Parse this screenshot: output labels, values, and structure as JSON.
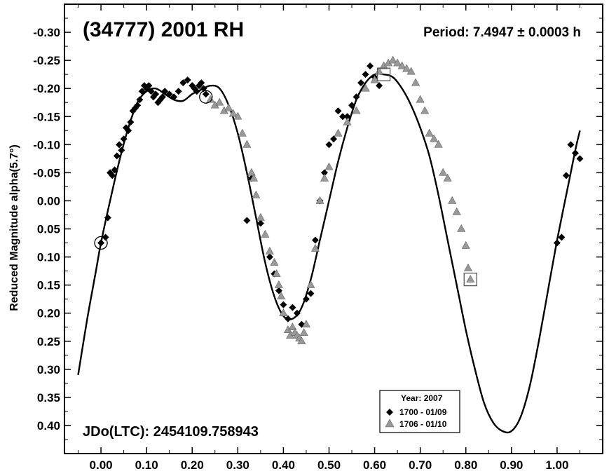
{
  "chart_data": {
    "type": "scatter",
    "title": "(34777) 2001 RH",
    "period_label": "Period: 7.4947 ± 0.0003 h",
    "epoch_label": "JDo(LTC): 2454109.758943",
    "ylabel": "Reduced Magnitude alpha(5.7°)",
    "xlabel": "",
    "xlim": [
      -0.08,
      1.1
    ],
    "ylim": [
      0.45,
      -0.35
    ],
    "y_inverted": true,
    "grid": false,
    "x_ticks": [
      "0.00",
      "0.10",
      "0.20",
      "0.30",
      "0.40",
      "0.50",
      "0.60",
      "0.70",
      "0.80",
      "0.90",
      "1.00"
    ],
    "x_tick_values": [
      0.0,
      0.1,
      0.2,
      0.3,
      0.4,
      0.5,
      0.6,
      0.7,
      0.8,
      0.9,
      1.0
    ],
    "y_ticks": [
      "-0.30",
      "-0.25",
      "-0.20",
      "-0.15",
      "-0.10",
      "-0.05",
      "0.00",
      "0.05",
      "0.10",
      "0.15",
      "0.20",
      "0.25",
      "0.30",
      "0.35",
      "0.40"
    ],
    "y_tick_values": [
      -0.3,
      -0.25,
      -0.2,
      -0.15,
      -0.1,
      -0.05,
      0.0,
      0.05,
      0.1,
      0.15,
      0.2,
      0.25,
      0.3,
      0.35,
      0.4
    ],
    "legend": {
      "title": "Year: 2007",
      "position": "bottom-right",
      "entries": [
        {
          "label": "1700 - 01/09",
          "marker": "diamond",
          "color": "#000000"
        },
        {
          "label": "1706 - 01/10",
          "marker": "triangle",
          "color": "#999999"
        }
      ]
    },
    "fit_curve": {
      "name": "",
      "x": [
        -0.05,
        -0.03,
        -0.01,
        0.0,
        0.02,
        0.04,
        0.06,
        0.08,
        0.1,
        0.12,
        0.14,
        0.16,
        0.18,
        0.2,
        0.22,
        0.24,
        0.26,
        0.28,
        0.3,
        0.32,
        0.34,
        0.36,
        0.38,
        0.4,
        0.42,
        0.44,
        0.46,
        0.48,
        0.5,
        0.52,
        0.54,
        0.56,
        0.58,
        0.6,
        0.62,
        0.64,
        0.66,
        0.68,
        0.7,
        0.72,
        0.74,
        0.76,
        0.78,
        0.8,
        0.82,
        0.84,
        0.86,
        0.88,
        0.9,
        0.92,
        0.94,
        0.96,
        0.98,
        1.0,
        1.02,
        1.04,
        1.05
      ],
      "y": [
        0.31,
        0.21,
        0.12,
        0.075,
        0.0,
        -0.07,
        -0.13,
        -0.175,
        -0.195,
        -0.2,
        -0.19,
        -0.18,
        -0.178,
        -0.19,
        -0.198,
        -0.205,
        -0.2,
        -0.17,
        -0.12,
        -0.05,
        0.03,
        0.11,
        0.17,
        0.205,
        0.21,
        0.19,
        0.14,
        0.07,
        0.0,
        -0.07,
        -0.13,
        -0.18,
        -0.21,
        -0.225,
        -0.225,
        -0.22,
        -0.2,
        -0.17,
        -0.13,
        -0.08,
        -0.01,
        0.07,
        0.15,
        0.23,
        0.3,
        0.36,
        0.395,
        0.41,
        0.41,
        0.385,
        0.33,
        0.25,
        0.16,
        0.07,
        -0.01,
        -0.09,
        -0.125
      ]
    },
    "series": [
      {
        "name": "1700 - 01/09",
        "marker": "diamond",
        "color": "#000000",
        "x": [
          0.0,
          0.01,
          0.015,
          0.02,
          0.025,
          0.03,
          0.035,
          0.04,
          0.045,
          0.05,
          0.055,
          0.06,
          0.065,
          0.07,
          0.075,
          0.08,
          0.085,
          0.09,
          0.095,
          0.1,
          0.105,
          0.11,
          0.115,
          0.12,
          0.125,
          0.13,
          0.135,
          0.14,
          0.15,
          0.16,
          0.17,
          0.18,
          0.19,
          0.2,
          0.205,
          0.21,
          0.215,
          0.22,
          0.225,
          0.23,
          0.32,
          0.33,
          0.35,
          0.37,
          0.38,
          0.39,
          0.4,
          0.41,
          0.42,
          0.43,
          0.44,
          0.45,
          0.46,
          0.47,
          0.48,
          0.49,
          0.5,
          0.51,
          0.52,
          0.53,
          0.54,
          0.55,
          0.56,
          0.57,
          0.58,
          0.59,
          0.6,
          0.61,
          1.0,
          1.01,
          1.02,
          1.03,
          1.04,
          1.05
        ],
        "y": [
          0.075,
          0.065,
          0.03,
          -0.05,
          -0.045,
          -0.055,
          -0.08,
          -0.1,
          -0.09,
          -0.11,
          -0.13,
          -0.125,
          -0.14,
          -0.16,
          -0.165,
          -0.17,
          -0.18,
          -0.195,
          -0.205,
          -0.2,
          -0.205,
          -0.195,
          -0.185,
          -0.19,
          -0.175,
          -0.18,
          -0.185,
          -0.195,
          -0.19,
          -0.185,
          -0.195,
          -0.21,
          -0.215,
          -0.205,
          -0.2,
          -0.195,
          -0.205,
          -0.21,
          -0.2,
          -0.19,
          0.035,
          -0.04,
          0.04,
          0.1,
          0.13,
          0.16,
          0.185,
          0.21,
          0.19,
          0.2,
          0.22,
          0.175,
          0.165,
          0.07,
          0.0,
          -0.05,
          -0.1,
          -0.11,
          -0.16,
          -0.15,
          -0.15,
          -0.17,
          -0.185,
          -0.21,
          -0.225,
          -0.24,
          -0.22,
          -0.205,
          0.075,
          0.065,
          -0.045,
          -0.1,
          -0.085,
          -0.075
        ]
      },
      {
        "name": "1706 - 01/10",
        "marker": "triangle",
        "color": "#999999",
        "x": [
          0.24,
          0.25,
          0.26,
          0.27,
          0.28,
          0.29,
          0.3,
          0.31,
          0.32,
          0.33,
          0.335,
          0.34,
          0.35,
          0.36,
          0.37,
          0.38,
          0.385,
          0.39,
          0.395,
          0.4,
          0.41,
          0.415,
          0.42,
          0.425,
          0.43,
          0.435,
          0.44,
          0.445,
          0.45,
          0.46,
          0.47,
          0.48,
          0.49,
          0.5,
          0.52,
          0.54,
          0.56,
          0.58,
          0.6,
          0.61,
          0.62,
          0.63,
          0.64,
          0.65,
          0.66,
          0.67,
          0.68,
          0.69,
          0.7,
          0.71,
          0.72,
          0.73,
          0.74,
          0.75,
          0.76,
          0.77,
          0.78,
          0.79,
          0.8,
          0.805,
          0.81
        ],
        "y": [
          -0.18,
          -0.17,
          -0.175,
          -0.16,
          -0.165,
          -0.155,
          -0.15,
          -0.12,
          -0.1,
          -0.05,
          -0.04,
          -0.01,
          0.03,
          0.06,
          0.09,
          0.11,
          0.13,
          0.15,
          0.17,
          0.2,
          0.23,
          0.24,
          0.225,
          0.235,
          0.24,
          0.245,
          0.25,
          0.235,
          0.22,
          0.15,
          0.085,
          0.0,
          -0.04,
          -0.06,
          -0.12,
          -0.14,
          -0.16,
          -0.2,
          -0.215,
          -0.23,
          -0.24,
          -0.245,
          -0.25,
          -0.245,
          -0.24,
          -0.235,
          -0.23,
          -0.21,
          -0.18,
          -0.16,
          -0.12,
          -0.11,
          -0.1,
          -0.05,
          -0.04,
          0.0,
          0.02,
          0.05,
          0.08,
          0.12,
          0.14
        ]
      }
    ],
    "annotations": [
      {
        "shape": "circle",
        "x": 0.0,
        "y": 0.075
      },
      {
        "shape": "square",
        "x": 0.81,
        "y": 0.14
      },
      {
        "shape": "square",
        "x": 0.62,
        "y": -0.225
      },
      {
        "shape": "circle",
        "x": 0.23,
        "y": -0.185
      }
    ]
  }
}
